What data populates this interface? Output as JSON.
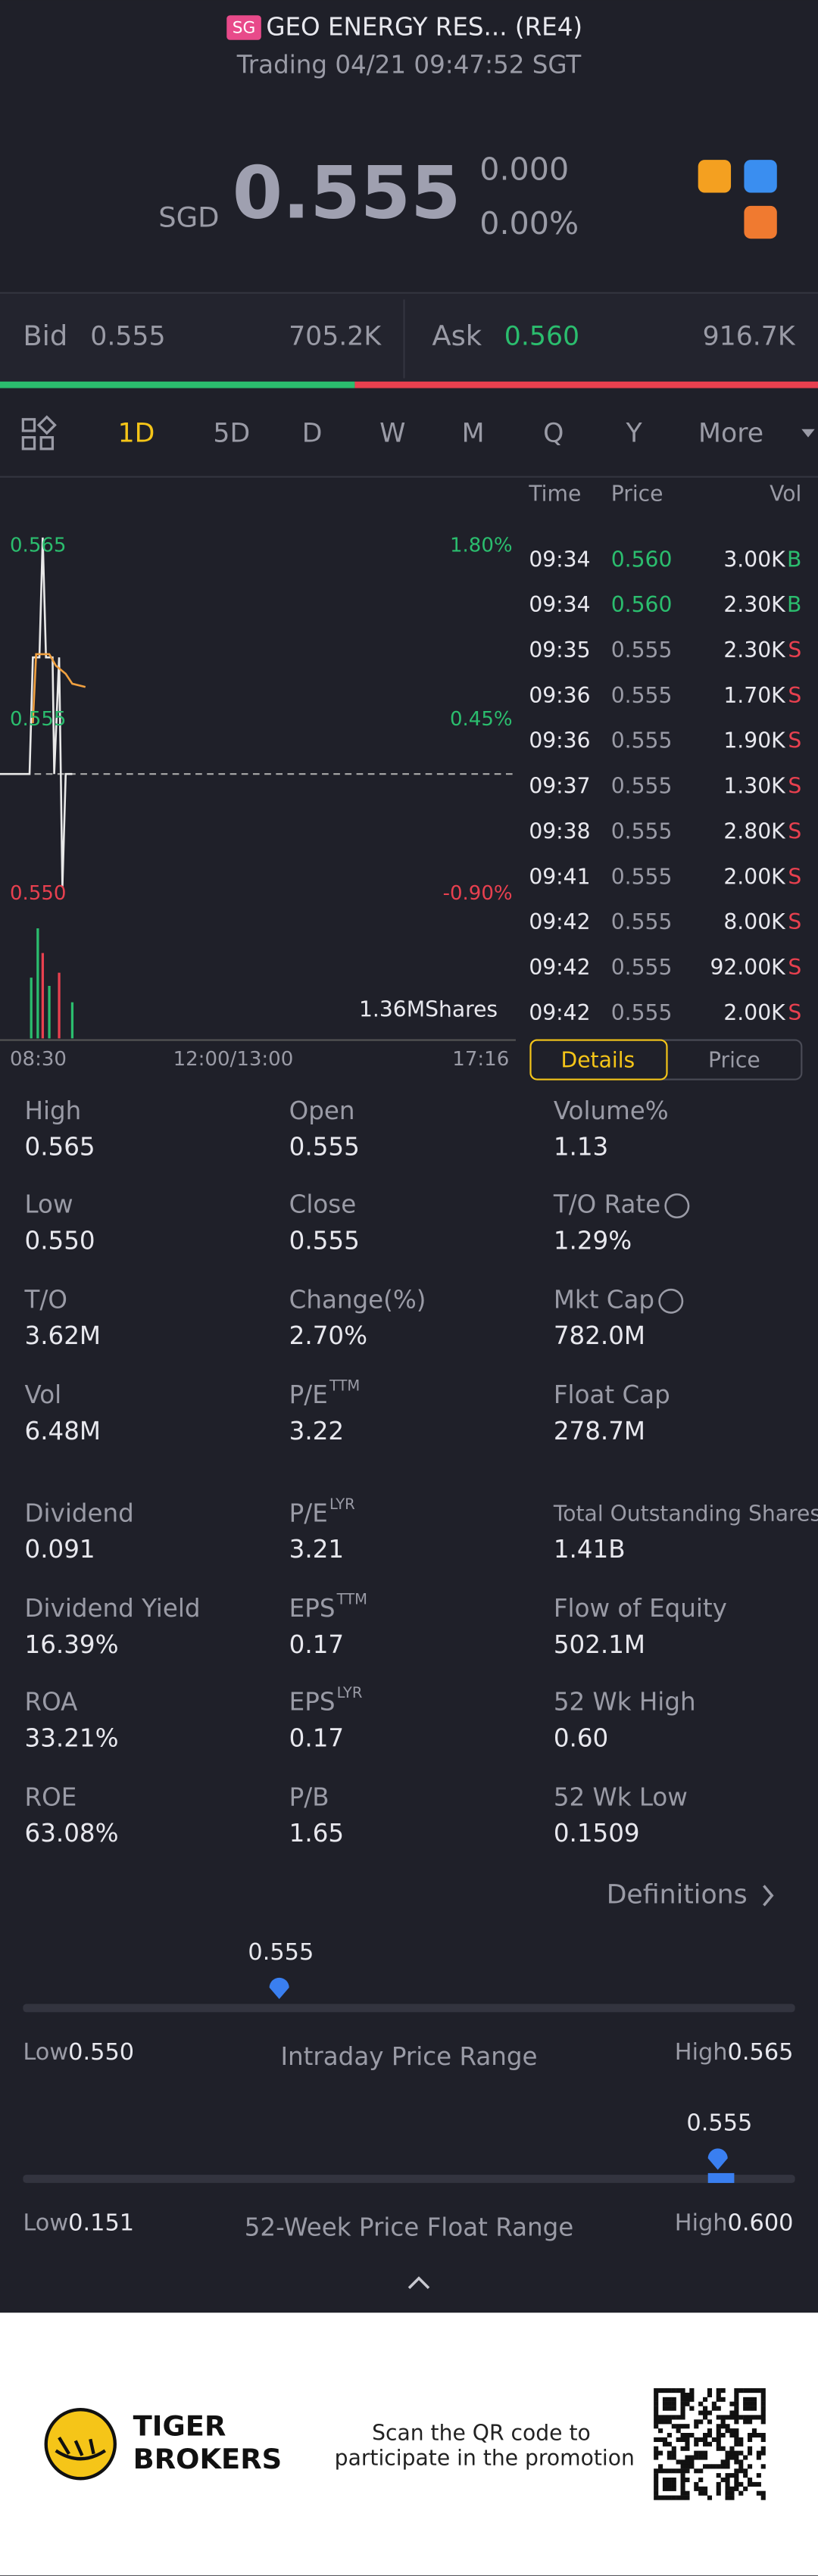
{
  "header": {
    "badge": "SG",
    "title": "GEO ENERGY RES... (RE4)",
    "status": "Trading 04/21 09:47:52 SGT"
  },
  "quote": {
    "currency": "SGD",
    "price": "0.555",
    "change": "0.000",
    "change_pct": "0.00%"
  },
  "bidask": {
    "bid_label": "Bid",
    "bid": "0.555",
    "bid_size": "705.2K",
    "ask_label": "Ask",
    "ask": "0.560",
    "ask_size": "916.7K"
  },
  "tabs": [
    "1D",
    "5D",
    "D",
    "W",
    "M",
    "Q",
    "Y",
    "More"
  ],
  "chart": {
    "price_labels": [
      "0.565",
      "0.555",
      "0.550"
    ],
    "pct_labels": [
      "1.80%",
      "0.45%",
      "-0.90%"
    ],
    "volume": "1.36MShares",
    "times": [
      "08:30",
      "12:00/13:00",
      "17:16"
    ]
  },
  "trades": {
    "headers": [
      "Time",
      "Price",
      "Vol"
    ],
    "rows": [
      [
        "09:34",
        "0.560",
        "3.00K",
        "B"
      ],
      [
        "09:34",
        "0.560",
        "2.30K",
        "B"
      ],
      [
        "09:35",
        "0.555",
        "2.30K",
        "S"
      ],
      [
        "09:36",
        "0.555",
        "1.70K",
        "S"
      ],
      [
        "09:36",
        "0.555",
        "1.90K",
        "S"
      ],
      [
        "09:37",
        "0.555",
        "1.30K",
        "S"
      ],
      [
        "09:38",
        "0.555",
        "2.80K",
        "S"
      ],
      [
        "09:41",
        "0.555",
        "2.00K",
        "S"
      ],
      [
        "09:42",
        "0.555",
        "8.00K",
        "S"
      ],
      [
        "09:42",
        "0.555",
        "92.00K",
        "S"
      ],
      [
        "09:42",
        "0.555",
        "2.00K",
        "S"
      ]
    ]
  },
  "buttons": [
    "Details",
    "Price"
  ],
  "stats": [
    [
      {
        "label": "High",
        "value": "0.565"
      },
      {
        "label": "Open",
        "value": "0.555"
      },
      {
        "label": "Volume%",
        "value": "1.13"
      }
    ],
    [
      {
        "label": "Low",
        "value": "0.550"
      },
      {
        "label": "Close",
        "value": "0.555"
      },
      {
        "label": "T/O Rate",
        "value": "1.29%"
      }
    ],
    [
      {
        "label": "T/O",
        "value": "3.62M"
      },
      {
        "label": "Change(%)",
        "value": "2.70%"
      },
      {
        "label": "Mkt Cap",
        "value": "782.0M"
      }
    ],
    [
      {
        "label": "Vol",
        "value": "6.48M"
      },
      {
        "label": "P/E",
        "sup": "TTM",
        "value": "3.22"
      },
      {
        "label": "Float Cap",
        "value": "278.7M"
      }
    ],
    [
      {
        "label": "Dividend",
        "value": "0.091"
      },
      {
        "label": "P/E",
        "sup": "LYR",
        "value": "3.21"
      },
      {
        "label": "Total Outstanding Shares",
        "value": "1.41B"
      }
    ],
    [
      {
        "label": "Dividend Yield",
        "value": "16.39%"
      },
      {
        "label": "EPS",
        "sup": "TTM",
        "value": "0.17"
      },
      {
        "label": "Flow of Equity",
        "value": "502.1M"
      }
    ],
    [
      {
        "label": "ROA",
        "value": "33.21%"
      },
      {
        "label": "EPS",
        "sup": "LYR",
        "value": "0.17"
      },
      {
        "label": "52 Wk High",
        "value": "0.60"
      }
    ],
    [
      {
        "label": "ROE",
        "value": "63.08%"
      },
      {
        "label": "P/B",
        "value": "1.65"
      },
      {
        "label": "52 Wk Low",
        "value": "0.1509"
      }
    ]
  ],
  "definitions": "Definitions",
  "ranges": [
    {
      "marker": "0.555",
      "low_label": "Low",
      "low": "0.550",
      "title": "Intraday Price Range",
      "high_label": "High",
      "high": "0.565"
    },
    {
      "marker": "0.555",
      "low_label": "Low",
      "low": "0.151",
      "title": "52-Week Price Float Range",
      "high_label": "High",
      "high": "0.600"
    }
  ],
  "footer": {
    "brand": [
      "TIGER",
      "BROKERS"
    ],
    "promo": [
      "Scan the QR code to",
      "participate in the promotion"
    ]
  }
}
